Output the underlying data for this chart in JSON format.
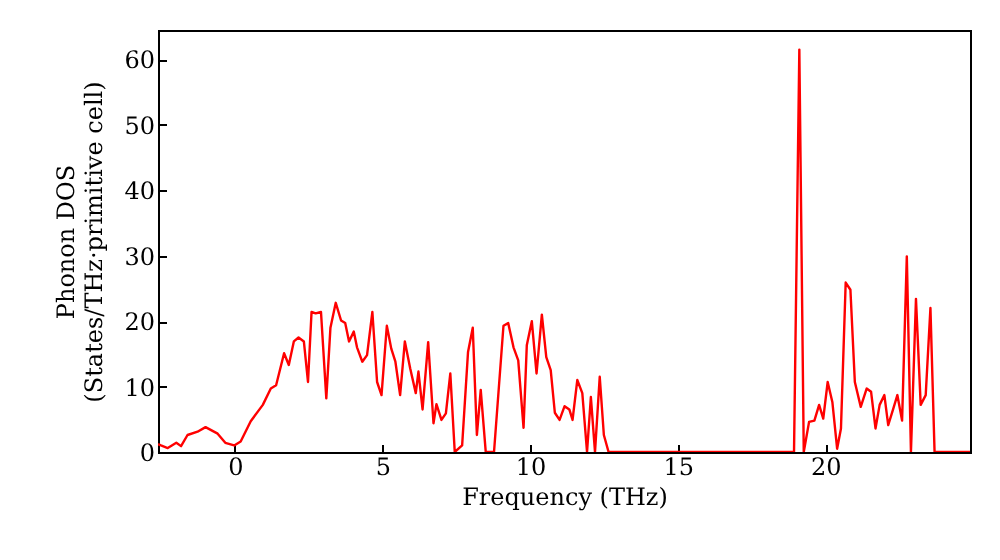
{
  "chart_data": {
    "type": "line",
    "xlabel": "Frequency (THz)",
    "ylabel": "Phonon DOS\n(States/THz·primitive cell)",
    "xlim": [
      -2.6,
      24.9
    ],
    "ylim": [
      0,
      64.5
    ],
    "xticks": [
      0,
      5,
      10,
      15,
      20
    ],
    "yticks": [
      0,
      10,
      20,
      30,
      40,
      50,
      60
    ],
    "grid": false,
    "series": [
      {
        "color": "#ff0000",
        "x": [
          -2.6,
          -2.5,
          -2.27,
          -1.98,
          -1.82,
          -1.6,
          -1.26,
          -0.99,
          -0.58,
          -0.32,
          -0.02,
          0.2,
          0.54,
          0.95,
          1.22,
          1.4,
          1.67,
          1.83,
          2.0,
          2.16,
          2.34,
          2.48,
          2.6,
          2.74,
          2.92,
          3.1,
          3.24,
          3.42,
          3.6,
          3.74,
          3.87,
          4.03,
          4.14,
          4.32,
          4.48,
          4.66,
          4.82,
          4.97,
          5.15,
          5.3,
          5.44,
          5.6,
          5.76,
          5.94,
          6.13,
          6.22,
          6.36,
          6.55,
          6.73,
          6.83,
          7.0,
          7.15,
          7.3,
          7.45,
          7.7,
          7.9,
          8.06,
          8.2,
          8.33,
          8.5,
          8.78,
          9.1,
          9.26,
          9.44,
          9.6,
          9.78,
          9.89,
          10.06,
          10.22,
          10.4,
          10.55,
          10.7,
          10.84,
          11.0,
          11.17,
          11.33,
          11.44,
          11.6,
          11.77,
          11.93,
          12.06,
          12.2,
          12.36,
          12.5,
          12.66,
          18.94,
          19.12,
          19.27,
          19.45,
          19.63,
          19.79,
          19.93,
          20.08,
          20.24,
          20.4,
          20.53,
          20.69,
          20.85,
          21.0,
          21.2,
          21.4,
          21.55,
          21.7,
          21.84,
          22.0,
          22.13,
          22.3,
          22.44,
          22.6,
          22.76,
          22.9,
          23.07,
          23.23,
          23.4,
          23.56,
          23.7,
          24.9
        ],
        "values": [
          1.2,
          1.0,
          0.6,
          1.4,
          0.9,
          2.6,
          3.1,
          3.8,
          2.8,
          1.4,
          1.0,
          1.6,
          4.7,
          7.2,
          9.7,
          10.2,
          15.1,
          13.3,
          16.9,
          17.5,
          16.9,
          10.7,
          21.4,
          21.2,
          21.4,
          8.2,
          19,
          22.8,
          20.1,
          19.7,
          16.9,
          18.4,
          16,
          13.8,
          14.8,
          21.4,
          10.7,
          8.7,
          19.3,
          15.8,
          13.8,
          8.7,
          16.9,
          12.8,
          9,
          12.3,
          6.5,
          16.8,
          4.4,
          7.3,
          4.9,
          5.9,
          12,
          0,
          1,
          15.3,
          19,
          2.6,
          9.5,
          0,
          0,
          19.3,
          19.7,
          16,
          14,
          3.7,
          16.3,
          20,
          12,
          21,
          14.5,
          12.5,
          6,
          4.9,
          7,
          6.5,
          4.9,
          11,
          9,
          0,
          8.4,
          0,
          11.5,
          2.6,
          0,
          0,
          61.5,
          0,
          4.6,
          4.8,
          7.2,
          5.1,
          10.7,
          7.6,
          0.5,
          3.6,
          25.9,
          24.8,
          10.7,
          6.9,
          9.7,
          9.2,
          3.6,
          7.2,
          8.7,
          4.1,
          6.6,
          8.7,
          4.8,
          29.9,
          0,
          23.4,
          7.2,
          8.7,
          22,
          0,
          0
        ]
      }
    ]
  }
}
